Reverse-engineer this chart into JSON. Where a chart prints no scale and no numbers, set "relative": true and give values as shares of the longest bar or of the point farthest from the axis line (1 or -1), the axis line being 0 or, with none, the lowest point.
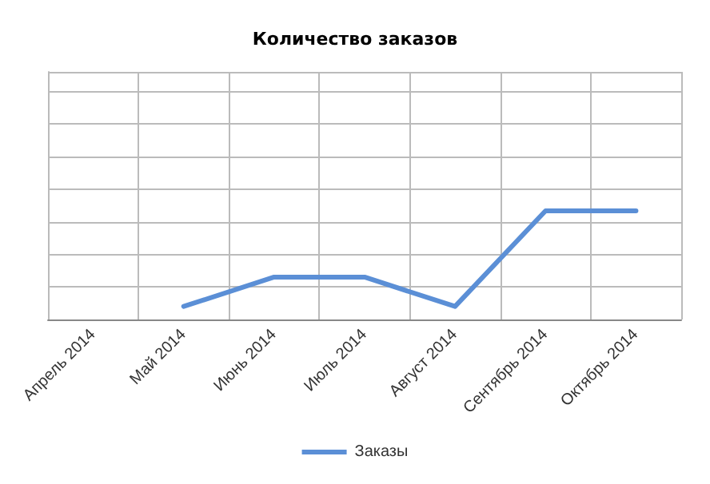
{
  "chart_data": {
    "type": "line",
    "title": "Количество заказов",
    "relative": true,
    "categories": [
      "Апрель 2014",
      "Май 2014",
      "Июнь 2014",
      "Июль 2014",
      "Август 2014",
      "Сентябрь 2014",
      "Октябрь 2014"
    ],
    "series": [
      {
        "name": "Заказы",
        "color": "#5b8fd6",
        "values": [
          null,
          0.12,
          0.39,
          0.39,
          0.12,
          1,
          1
        ]
      }
    ],
    "grid": true,
    "legend": "bottom",
    "marker": "none",
    "line_style": "solid"
  }
}
